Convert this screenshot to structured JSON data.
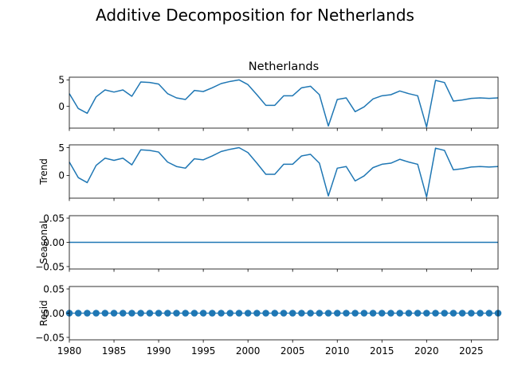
{
  "chart_data": {
    "type": "line",
    "title": "Additive Decomposition for Netherlands",
    "xlim": [
      1980,
      2028
    ],
    "x_ticks": [
      "1980",
      "1985",
      "1990",
      "1995",
      "2000",
      "2005",
      "2010",
      "2015",
      "2020",
      "2025"
    ],
    "x": [
      1980,
      1981,
      1982,
      1983,
      1984,
      1985,
      1986,
      1987,
      1988,
      1989,
      1990,
      1991,
      1992,
      1993,
      1994,
      1995,
      1996,
      1997,
      1998,
      1999,
      2000,
      2001,
      2002,
      2003,
      2004,
      2005,
      2006,
      2007,
      2008,
      2009,
      2010,
      2011,
      2012,
      2013,
      2014,
      2015,
      2016,
      2017,
      2018,
      2019,
      2020,
      2021,
      2022,
      2023,
      2024,
      2025,
      2026,
      2027,
      2028
    ],
    "panels": [
      {
        "title": "Netherlands",
        "ylabel": "",
        "ylim": [
          -4.1,
          5.5
        ],
        "y_ticks": [
          "0",
          "5"
        ],
        "y_tick_values": [
          0,
          5
        ],
        "style": "line",
        "values": [
          2.4,
          -0.4,
          -1.3,
          1.8,
          3.1,
          2.7,
          3.1,
          1.9,
          4.6,
          4.5,
          4.2,
          2.4,
          1.6,
          1.3,
          3.0,
          2.8,
          3.5,
          4.3,
          4.7,
          5.0,
          4.1,
          2.2,
          0.2,
          0.2,
          2.0,
          2.0,
          3.5,
          3.8,
          2.2,
          -3.7,
          1.3,
          1.6,
          -1.0,
          -0.1,
          1.4,
          2.0,
          2.2,
          2.9,
          2.4,
          2.0,
          -3.9,
          4.9,
          4.5,
          1.0,
          1.2,
          1.5,
          1.6,
          1.5,
          1.6
        ]
      },
      {
        "title": "",
        "ylabel": "Trend",
        "ylim": [
          -4.1,
          5.5
        ],
        "y_ticks": [
          "0",
          "5"
        ],
        "y_tick_values": [
          0,
          5
        ],
        "style": "line",
        "values": [
          2.4,
          -0.4,
          -1.3,
          1.8,
          3.1,
          2.7,
          3.1,
          1.9,
          4.6,
          4.5,
          4.2,
          2.4,
          1.6,
          1.3,
          3.0,
          2.8,
          3.5,
          4.3,
          4.7,
          5.0,
          4.1,
          2.2,
          0.2,
          0.2,
          2.0,
          2.0,
          3.5,
          3.8,
          2.2,
          -3.7,
          1.3,
          1.6,
          -1.0,
          -0.1,
          1.4,
          2.0,
          2.2,
          2.9,
          2.4,
          2.0,
          -3.9,
          4.9,
          4.5,
          1.0,
          1.2,
          1.5,
          1.6,
          1.5,
          1.6
        ]
      },
      {
        "title": "",
        "ylabel": "Seasonal",
        "ylim": [
          -0.055,
          0.055
        ],
        "y_ticks": [
          "−0.05",
          "0.00",
          "0.05"
        ],
        "y_tick_values": [
          -0.05,
          0,
          0.05
        ],
        "style": "line",
        "values": [
          0,
          0,
          0,
          0,
          0,
          0,
          0,
          0,
          0,
          0,
          0,
          0,
          0,
          0,
          0,
          0,
          0,
          0,
          0,
          0,
          0,
          0,
          0,
          0,
          0,
          0,
          0,
          0,
          0,
          0,
          0,
          0,
          0,
          0,
          0,
          0,
          0,
          0,
          0,
          0,
          0,
          0,
          0,
          0,
          0,
          0,
          0,
          0,
          0
        ]
      },
      {
        "title": "",
        "ylabel": "Resid",
        "ylim": [
          -0.055,
          0.055
        ],
        "y_ticks": [
          "−0.05",
          "0.00",
          "0.05"
        ],
        "y_tick_values": [
          -0.05,
          0,
          0.05
        ],
        "style": "scatter",
        "values": [
          0,
          0,
          0,
          0,
          0,
          0,
          0,
          0,
          0,
          0,
          0,
          0,
          0,
          0,
          0,
          0,
          0,
          0,
          0,
          0,
          0,
          0,
          0,
          0,
          0,
          0,
          0,
          0,
          0,
          0,
          0,
          0,
          0,
          0,
          0,
          0,
          0,
          0,
          0,
          0,
          0,
          0,
          0,
          0,
          0,
          0,
          0,
          0,
          0
        ]
      }
    ],
    "colors": {
      "series": "#1f77b4",
      "axis": "#000000",
      "background": "#ffffff"
    }
  }
}
